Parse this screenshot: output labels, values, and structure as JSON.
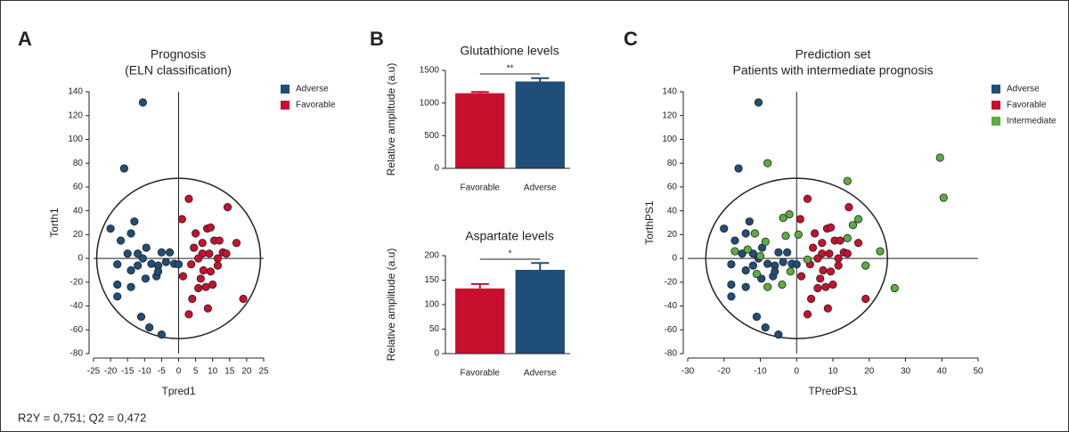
{
  "chart_data": [
    {
      "type": "scatter",
      "panel": "A",
      "title": "Prognosis",
      "subtitle": "(ELN classification)",
      "x_label": "Tpred1",
      "y_label": "Torth1",
      "note": "R2Y = 0,751; Q2 = 0,472",
      "xlim": [
        -25,
        25
      ],
      "ylim": [
        -80,
        140
      ],
      "xticks": [
        -25,
        -20,
        -15,
        -10,
        -5,
        0,
        5,
        10,
        15,
        20,
        25
      ],
      "yticks": [
        -80,
        -60,
        -40,
        -20,
        0,
        20,
        40,
        60,
        80,
        100,
        120,
        140
      ],
      "series": [
        {
          "name": "Adverse",
          "color": "#1f4e79",
          "x": [
            -10.5,
            -16,
            -20,
            -13,
            -14,
            -17,
            -15,
            -18,
            -18,
            -18,
            -14,
            -12,
            -9.5,
            -10.5,
            -8,
            -6,
            -5,
            -3.7,
            -1.3,
            -2.6,
            -9.7,
            -6.5,
            -11,
            -8.6,
            -5,
            -14,
            -6,
            0,
            -12
          ],
          "values": [
            131,
            75.6,
            25,
            31,
            21,
            15,
            4,
            -5,
            -22,
            -32,
            -10,
            -6,
            9,
            0,
            -4.5,
            -6,
            5,
            -3,
            -4.5,
            5,
            -17,
            -15,
            -49,
            -58,
            -64,
            -24,
            -11,
            -5,
            4
          ]
        },
        {
          "name": "Favorable",
          "color": "#c8102e",
          "x": [
            3,
            1,
            7,
            8.4,
            9.4,
            7,
            10.5,
            4.5,
            5.8,
            3.7,
            7.3,
            9.4,
            11.5,
            13,
            14.4,
            17,
            19,
            14,
            3,
            4,
            8.6,
            5.8,
            10,
            1.3,
            6.5,
            11.5,
            9,
            5,
            12,
            8
          ],
          "values": [
            50,
            33,
            4,
            25,
            26,
            13,
            15,
            9,
            0,
            -5,
            -10,
            -11,
            0,
            5,
            43,
            13,
            -34,
            4,
            -47,
            -34,
            -42,
            -25,
            -22,
            -15,
            -17,
            -6,
            4,
            21,
            15,
            -24
          ]
        }
      ]
    },
    {
      "type": "bar",
      "panel": "B",
      "title": "Glutathione levels",
      "y_label": "Relative amplitude (a.u)",
      "annotation": "**",
      "categories": [
        "Favorable",
        "Adverse"
      ],
      "values": [
        1150,
        1330
      ],
      "errors": [
        20,
        50
      ],
      "colors": [
        "#c8102e",
        "#1f4e79"
      ],
      "ylim": [
        0,
        1500
      ],
      "yticks": [
        0,
        500,
        1000,
        1500
      ]
    },
    {
      "type": "bar",
      "title": "Aspartate levels",
      "y_label": "Relative amplitude (a.u)",
      "annotation": "*",
      "categories": [
        "Favorable",
        "Adverse"
      ],
      "values": [
        133,
        171
      ],
      "errors": [
        9,
        14
      ],
      "colors": [
        "#c8102e",
        "#1f4e79"
      ],
      "ylim": [
        0,
        200
      ],
      "yticks": [
        0,
        50,
        100,
        150,
        200
      ]
    },
    {
      "type": "scatter",
      "panel": "C",
      "title": "Prediction set",
      "subtitle": "Patients with intermediate prognosis",
      "x_label": "TPredPS1",
      "y_label": "TorthPS1",
      "xlim": [
        -30,
        50
      ],
      "ylim": [
        -80,
        140
      ],
      "xticks": [
        -30,
        -20,
        -10,
        0,
        10,
        20,
        30,
        40,
        50
      ],
      "yticks": [
        -80,
        -60,
        -40,
        -20,
        0,
        20,
        40,
        60,
        80,
        100,
        120,
        140
      ],
      "series": [
        {
          "name": "Adverse",
          "color": "#1f4e79",
          "x": [
            -10.5,
            -16,
            -20,
            -13,
            -14,
            -17,
            -15,
            -18,
            -18,
            -18,
            -14,
            -12,
            -9.5,
            -10.5,
            -8,
            -6,
            -5,
            -3.7,
            -1.3,
            -2.6,
            -9.7,
            -6.5,
            -11,
            -8.6,
            -5,
            -14,
            -6,
            0,
            -12
          ],
          "values": [
            131,
            75.6,
            25,
            31,
            21,
            15,
            4,
            -5,
            -22,
            -32,
            -10,
            -6,
            9,
            0,
            -4.5,
            -6,
            5,
            -3,
            -4.5,
            5,
            -17,
            -15,
            -49,
            -58,
            -64,
            -24,
            -11,
            -5,
            4
          ]
        },
        {
          "name": "Favorable",
          "color": "#c8102e",
          "x": [
            3,
            1,
            7,
            8.4,
            9.4,
            7,
            10.5,
            4.5,
            5.8,
            3.7,
            7.3,
            9.4,
            11.5,
            13,
            14.4,
            17,
            19,
            14,
            3,
            4,
            8.6,
            5.8,
            10,
            1.3,
            6.5,
            11.5,
            9,
            5,
            12,
            8
          ],
          "values": [
            50,
            33,
            4,
            25,
            26,
            13,
            15,
            9,
            0,
            -5,
            -10,
            -11,
            0,
            5,
            43,
            13,
            -34,
            4,
            -47,
            -34,
            -42,
            -25,
            -22,
            -15,
            -17,
            -6,
            4,
            21,
            15,
            -24
          ]
        },
        {
          "name": "Intermediate",
          "color": "#5aae3c",
          "x": [
            39.5,
            40.5,
            -8,
            14,
            -3.7,
            -2,
            -3,
            0.5,
            -8.6,
            -10,
            -11,
            -8,
            -4,
            -1.7,
            3,
            15.5,
            17,
            14,
            23,
            19,
            27,
            -17,
            -13.5,
            -11.5
          ],
          "values": [
            84.6,
            51,
            80,
            65,
            34,
            37,
            19,
            20,
            14,
            2,
            -13,
            -24,
            -22,
            -11,
            -1,
            28,
            33,
            17,
            6,
            -6,
            -25,
            6,
            7.5,
            21
          ]
        }
      ]
    }
  ]
}
